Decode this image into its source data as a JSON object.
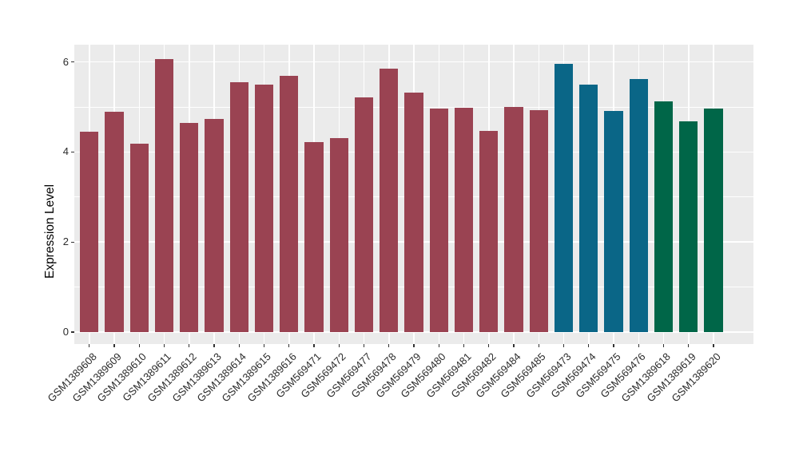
{
  "chart_data": {
    "type": "bar",
    "title": "",
    "xlabel": "",
    "ylabel": "Expression Level",
    "ylim": [
      0,
      6.39
    ],
    "yticks": [
      0,
      2,
      4,
      6
    ],
    "minor_yticks": [
      1,
      3,
      5
    ],
    "grid": true,
    "legend_position": "none",
    "panel_background": "#EBEBEB",
    "grid_color": "#FFFFFF",
    "tick_color": "#333333",
    "tick_label_color": "#2B2B2B",
    "axis_title_color": "#000000",
    "categories": [
      "GSM1389608",
      "GSM1389609",
      "GSM1389610",
      "GSM1389611",
      "GSM1389612",
      "GSM1389613",
      "GSM1389614",
      "GSM1389615",
      "GSM1389616",
      "GSM569471",
      "GSM569472",
      "GSM569477",
      "GSM569478",
      "GSM569479",
      "GSM569480",
      "GSM569481",
      "GSM569482",
      "GSM569484",
      "GSM569485",
      "GSM569473",
      "GSM569474",
      "GSM569475",
      "GSM569476",
      "GSM1389618",
      "GSM1389619",
      "GSM1389620"
    ],
    "values": [
      4.45,
      4.89,
      4.18,
      6.06,
      4.64,
      4.73,
      5.55,
      5.49,
      5.7,
      4.23,
      4.31,
      5.21,
      5.85,
      5.32,
      4.97,
      4.99,
      4.47,
      5.0,
      4.93,
      5.96,
      5.49,
      4.91,
      5.63,
      5.13,
      4.69,
      4.96
    ],
    "bar_colors": [
      "#9A4352",
      "#9A4352",
      "#9A4352",
      "#9A4352",
      "#9A4352",
      "#9A4352",
      "#9A4352",
      "#9A4352",
      "#9A4352",
      "#9A4352",
      "#9A4352",
      "#9A4352",
      "#9A4352",
      "#9A4352",
      "#9A4352",
      "#9A4352",
      "#9A4352",
      "#9A4352",
      "#9A4352",
      "#0A6687",
      "#0A6687",
      "#0A6687",
      "#0A6687",
      "#006648",
      "#006648",
      "#006648"
    ],
    "color_groups": {
      "maroon": "#9A4352",
      "teal": "#0A6687",
      "green": "#006648"
    }
  }
}
